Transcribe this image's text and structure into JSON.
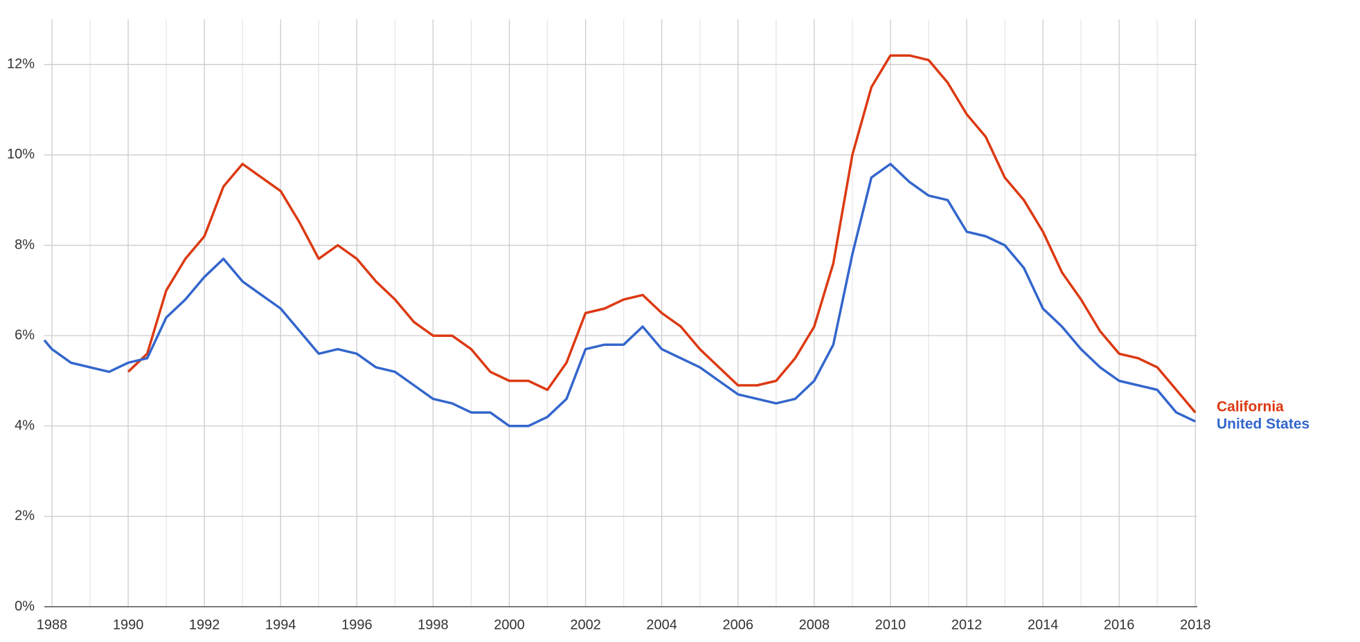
{
  "chart_data": {
    "type": "line",
    "x": [
      1987.8,
      1988.0,
      1988.5,
      1989.0,
      1989.5,
      1990.0,
      1990.5,
      1991.0,
      1991.5,
      1992.0,
      1992.5,
      1993.0,
      1993.5,
      1994.0,
      1994.5,
      1995.0,
      1995.5,
      1996.0,
      1996.5,
      1997.0,
      1997.5,
      1998.0,
      1998.5,
      1999.0,
      1999.5,
      2000.0,
      2000.5,
      2001.0,
      2001.5,
      2002.0,
      2002.5,
      2003.0,
      2003.5,
      2004.0,
      2004.5,
      2005.0,
      2005.5,
      2006.0,
      2006.5,
      2007.0,
      2007.5,
      2008.0,
      2008.5,
      2009.0,
      2009.5,
      2010.0,
      2010.5,
      2011.0,
      2011.5,
      2012.0,
      2012.5,
      2013.0,
      2013.5,
      2014.0,
      2014.5,
      2015.0,
      2015.5,
      2016.0,
      2016.5,
      2017.0,
      2017.5,
      2018.0
    ],
    "series": [
      {
        "name": "California",
        "color": "#dc3912",
        "values": [
          null,
          null,
          null,
          null,
          null,
          5.2,
          5.6,
          7.0,
          7.7,
          8.2,
          9.3,
          9.8,
          9.5,
          9.2,
          8.5,
          7.7,
          8.0,
          7.7,
          7.2,
          6.8,
          6.3,
          6.0,
          6.0,
          5.7,
          5.2,
          5.0,
          5.0,
          4.8,
          5.4,
          6.5,
          6.6,
          6.8,
          6.9,
          6.5,
          6.2,
          5.7,
          5.3,
          4.9,
          4.9,
          5.0,
          5.5,
          6.2,
          7.6,
          10.0,
          11.5,
          12.2,
          12.2,
          12.1,
          11.6,
          10.9,
          10.4,
          9.5,
          9.0,
          8.3,
          7.4,
          6.8,
          6.1,
          5.6,
          5.5,
          5.3,
          4.8,
          4.3
        ]
      },
      {
        "name": "United States",
        "color": "#3366cc",
        "values": [
          5.9,
          5.7,
          5.4,
          5.3,
          5.2,
          5.4,
          5.5,
          6.4,
          6.8,
          7.3,
          7.7,
          7.2,
          6.9,
          6.6,
          6.1,
          5.6,
          5.7,
          5.6,
          5.3,
          5.2,
          4.9,
          4.6,
          4.5,
          4.3,
          4.3,
          4.0,
          4.0,
          4.2,
          4.6,
          5.7,
          5.8,
          5.8,
          6.2,
          5.7,
          5.5,
          5.3,
          5.0,
          4.7,
          4.6,
          4.5,
          4.6,
          5.0,
          5.8,
          7.8,
          9.5,
          9.8,
          9.4,
          9.1,
          9.0,
          8.3,
          8.2,
          8.0,
          7.5,
          6.6,
          6.2,
          5.7,
          5.3,
          5.0,
          4.9,
          4.8,
          4.3,
          4.1
        ]
      }
    ],
    "xlim": [
      1987.8,
      2018.05
    ],
    "xticks": [
      1988,
      1990,
      1992,
      1994,
      1996,
      1998,
      2000,
      2002,
      2004,
      2006,
      2008,
      2010,
      2012,
      2014,
      2016,
      2018
    ],
    "xminorticks": [
      1989,
      1991,
      1993,
      1995,
      1997,
      1999,
      2001,
      2003,
      2005,
      2007,
      2009,
      2011,
      2013,
      2015,
      2017
    ],
    "ylim": [
      0,
      13
    ],
    "yticks": [
      {
        "value": 0,
        "label": "0%"
      },
      {
        "value": 2,
        "label": "2%"
      },
      {
        "value": 4,
        "label": "4%"
      },
      {
        "value": 6,
        "label": "6%"
      },
      {
        "value": 8,
        "label": "8%"
      },
      {
        "value": 10,
        "label": "10%"
      },
      {
        "value": 12,
        "label": "12%"
      }
    ],
    "grid": true
  }
}
